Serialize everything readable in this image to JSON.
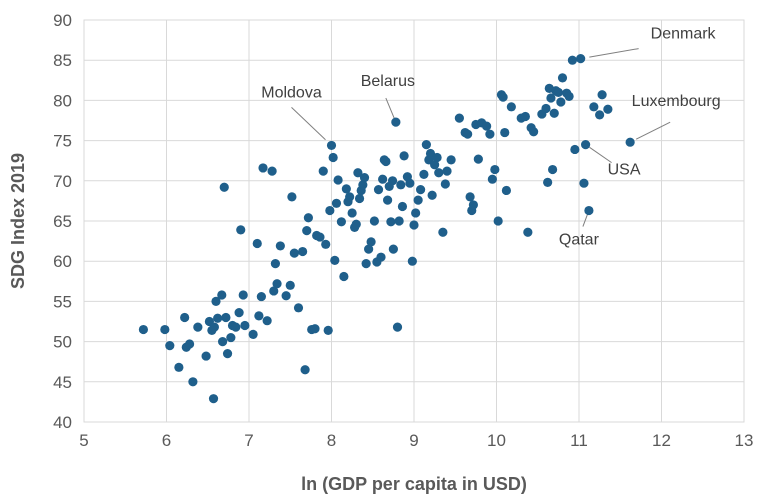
{
  "chart_data": {
    "type": "scatter",
    "title": "",
    "xlabel": "ln (GDP per capita in USD)",
    "ylabel": "SDG Index 2019",
    "xlim": [
      5,
      13
    ],
    "ylim": [
      40,
      90
    ],
    "xticks": [
      "5",
      "6",
      "7",
      "8",
      "9",
      "10",
      "11",
      "12",
      "13"
    ],
    "yticks": [
      "40",
      "45",
      "50",
      "55",
      "60",
      "65",
      "70",
      "75",
      "80",
      "85",
      "90"
    ],
    "grid": true,
    "legend": "none",
    "marker_color": "#1f5f8b",
    "series": [
      {
        "points": [
          [
            5.72,
            51.5
          ],
          [
            5.98,
            51.5
          ],
          [
            6.04,
            49.5
          ],
          [
            6.15,
            46.8
          ],
          [
            6.22,
            53.0
          ],
          [
            6.24,
            49.3
          ],
          [
            6.28,
            49.7
          ],
          [
            6.32,
            45.0
          ],
          [
            6.38,
            51.8
          ],
          [
            6.48,
            48.2
          ],
          [
            6.52,
            52.5
          ],
          [
            6.55,
            51.4
          ],
          [
            6.57,
            42.9
          ],
          [
            6.58,
            51.8
          ],
          [
            6.6,
            55.0
          ],
          [
            6.62,
            52.9
          ],
          [
            6.67,
            55.8
          ],
          [
            6.68,
            50.0
          ],
          [
            6.7,
            69.2
          ],
          [
            6.72,
            53.0
          ],
          [
            6.74,
            48.5
          ],
          [
            6.78,
            50.5
          ],
          [
            6.8,
            52.0
          ],
          [
            6.84,
            51.8
          ],
          [
            6.88,
            53.6
          ],
          [
            6.9,
            63.9
          ],
          [
            6.93,
            55.8
          ],
          [
            6.95,
            52.0
          ],
          [
            7.05,
            50.9
          ],
          [
            7.1,
            62.2
          ],
          [
            7.12,
            53.2
          ],
          [
            7.15,
            55.6
          ],
          [
            7.17,
            71.6
          ],
          [
            7.22,
            52.6
          ],
          [
            7.28,
            71.2
          ],
          [
            7.3,
            56.3
          ],
          [
            7.32,
            59.7
          ],
          [
            7.34,
            57.2
          ],
          [
            7.38,
            61.9
          ],
          [
            7.45,
            55.7
          ],
          [
            7.5,
            57.0
          ],
          [
            7.52,
            68.0
          ],
          [
            7.55,
            61.0
          ],
          [
            7.6,
            54.2
          ],
          [
            7.65,
            61.2
          ],
          [
            7.68,
            46.5
          ],
          [
            7.7,
            63.8
          ],
          [
            7.72,
            65.4
          ],
          [
            7.76,
            51.5
          ],
          [
            7.8,
            51.6
          ],
          [
            7.82,
            63.2
          ],
          [
            7.86,
            63.0
          ],
          [
            7.9,
            71.2
          ],
          [
            7.93,
            62.1
          ],
          [
            7.96,
            51.4
          ],
          [
            7.98,
            66.3
          ],
          [
            8.0,
            74.4
          ],
          [
            8.02,
            72.9
          ],
          [
            8.04,
            60.1
          ],
          [
            8.06,
            67.2
          ],
          [
            8.08,
            70.1
          ],
          [
            8.12,
            64.9
          ],
          [
            8.15,
            58.1
          ],
          [
            8.18,
            69.0
          ],
          [
            8.2,
            67.4
          ],
          [
            8.22,
            68.0
          ],
          [
            8.25,
            66.0
          ],
          [
            8.28,
            64.2
          ],
          [
            8.3,
            64.6
          ],
          [
            8.32,
            71.0
          ],
          [
            8.34,
            67.8
          ],
          [
            8.36,
            68.8
          ],
          [
            8.38,
            69.5
          ],
          [
            8.4,
            70.4
          ],
          [
            8.42,
            59.7
          ],
          [
            8.45,
            61.5
          ],
          [
            8.48,
            62.4
          ],
          [
            8.52,
            65.0
          ],
          [
            8.55,
            59.9
          ],
          [
            8.57,
            68.9
          ],
          [
            8.6,
            60.5
          ],
          [
            8.62,
            70.2
          ],
          [
            8.64,
            72.6
          ],
          [
            8.66,
            72.4
          ],
          [
            8.68,
            67.6
          ],
          [
            8.7,
            69.3
          ],
          [
            8.72,
            64.9
          ],
          [
            8.74,
            70.0
          ],
          [
            8.75,
            61.5
          ],
          [
            8.78,
            77.3
          ],
          [
            8.8,
            51.8
          ],
          [
            8.82,
            65.0
          ],
          [
            8.84,
            69.5
          ],
          [
            8.86,
            66.8
          ],
          [
            8.88,
            73.1
          ],
          [
            8.92,
            70.5
          ],
          [
            8.95,
            69.7
          ],
          [
            8.98,
            60.0
          ],
          [
            9.0,
            64.5
          ],
          [
            9.02,
            66.0
          ],
          [
            9.05,
            67.6
          ],
          [
            9.08,
            68.9
          ],
          [
            9.12,
            70.8
          ],
          [
            9.15,
            74.5
          ],
          [
            9.18,
            72.6
          ],
          [
            9.2,
            73.4
          ],
          [
            9.22,
            68.2
          ],
          [
            9.25,
            72.0
          ],
          [
            9.28,
            72.9
          ],
          [
            9.3,
            71.0
          ],
          [
            9.35,
            63.6
          ],
          [
            9.38,
            69.6
          ],
          [
            9.4,
            71.2
          ],
          [
            9.45,
            72.6
          ],
          [
            9.55,
            77.8
          ],
          [
            9.62,
            76.0
          ],
          [
            9.65,
            75.8
          ],
          [
            9.68,
            68.0
          ],
          [
            9.7,
            66.3
          ],
          [
            9.72,
            67.0
          ],
          [
            9.75,
            77.0
          ],
          [
            9.78,
            72.7
          ],
          [
            9.82,
            77.2
          ],
          [
            9.88,
            76.8
          ],
          [
            9.92,
            75.8
          ],
          [
            9.95,
            70.2
          ],
          [
            9.98,
            71.4
          ],
          [
            10.02,
            65.0
          ],
          [
            10.06,
            80.7
          ],
          [
            10.08,
            80.4
          ],
          [
            10.1,
            76.0
          ],
          [
            10.12,
            68.8
          ],
          [
            10.18,
            79.2
          ],
          [
            10.3,
            77.8
          ],
          [
            10.35,
            78.0
          ],
          [
            10.38,
            63.6
          ],
          [
            10.42,
            76.6
          ],
          [
            10.45,
            76.1
          ],
          [
            10.55,
            78.3
          ],
          [
            10.6,
            79.0
          ],
          [
            10.62,
            69.8
          ],
          [
            10.64,
            81.5
          ],
          [
            10.66,
            80.3
          ],
          [
            10.68,
            71.4
          ],
          [
            10.7,
            78.4
          ],
          [
            10.72,
            81.2
          ],
          [
            10.75,
            81.0
          ],
          [
            10.78,
            79.8
          ],
          [
            10.8,
            82.8
          ],
          [
            10.85,
            80.9
          ],
          [
            10.88,
            80.5
          ],
          [
            10.92,
            85.0
          ],
          [
            10.95,
            73.9
          ],
          [
            11.02,
            85.2
          ],
          [
            11.06,
            69.7
          ],
          [
            11.08,
            74.5
          ],
          [
            11.12,
            66.3
          ],
          [
            11.18,
            79.2
          ],
          [
            11.25,
            78.2
          ],
          [
            11.28,
            80.7
          ],
          [
            11.35,
            78.9
          ],
          [
            11.62,
            74.8
          ]
        ]
      }
    ],
    "annotations": [
      {
        "label": "Denmark",
        "x": 11.02,
        "y": 85.2
      },
      {
        "label": "Belarus",
        "x": 8.78,
        "y": 77.3
      },
      {
        "label": "Moldova",
        "x": 8.0,
        "y": 74.4
      },
      {
        "label": "Luxembourg",
        "x": 11.62,
        "y": 74.8
      },
      {
        "label": "USA",
        "x": 11.08,
        "y": 74.5
      },
      {
        "label": "Qatar",
        "x": 11.12,
        "y": 66.3
      }
    ]
  }
}
